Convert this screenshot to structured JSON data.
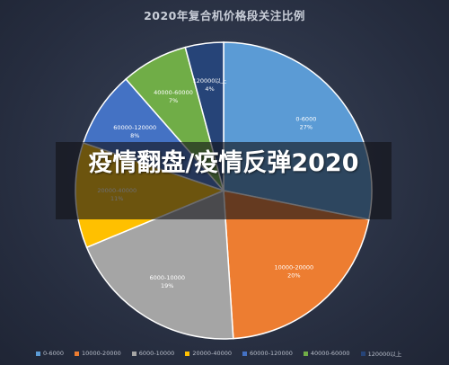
{
  "chart_data": {
    "type": "pie",
    "title": "2020年复合机价格段关注比例",
    "slices": [
      {
        "category": "0-6000",
        "percent_label": "27%",
        "value": 27,
        "color": "#5b9bd5"
      },
      {
        "category": "10000-20000",
        "percent_label": "20%",
        "value": 20,
        "color": "#ed7d31"
      },
      {
        "category": "6000-10000",
        "percent_label": "19%",
        "value": 19,
        "color": "#a5a5a5"
      },
      {
        "category": "20000-40000",
        "percent_label": "11%",
        "value": 11,
        "color": "#ffc000"
      },
      {
        "category": "60000-120000",
        "percent_label": "8%",
        "value": 8,
        "color": "#4472c4"
      },
      {
        "category": "40000-60000",
        "percent_label": "7%",
        "value": 7,
        "color": "#70ad47"
      },
      {
        "category": "120000以上",
        "percent_label": "4%",
        "value": 4,
        "color": "#264478"
      }
    ],
    "legend_position": "bottom",
    "legend": [
      "0-6000",
      "10000-20000",
      "6000-10000",
      "20000-40000",
      "60000-120000",
      "40000-60000",
      "120000以上"
    ]
  },
  "overlay": {
    "headline": "疫情翻盘/疫情反弹2020"
  }
}
